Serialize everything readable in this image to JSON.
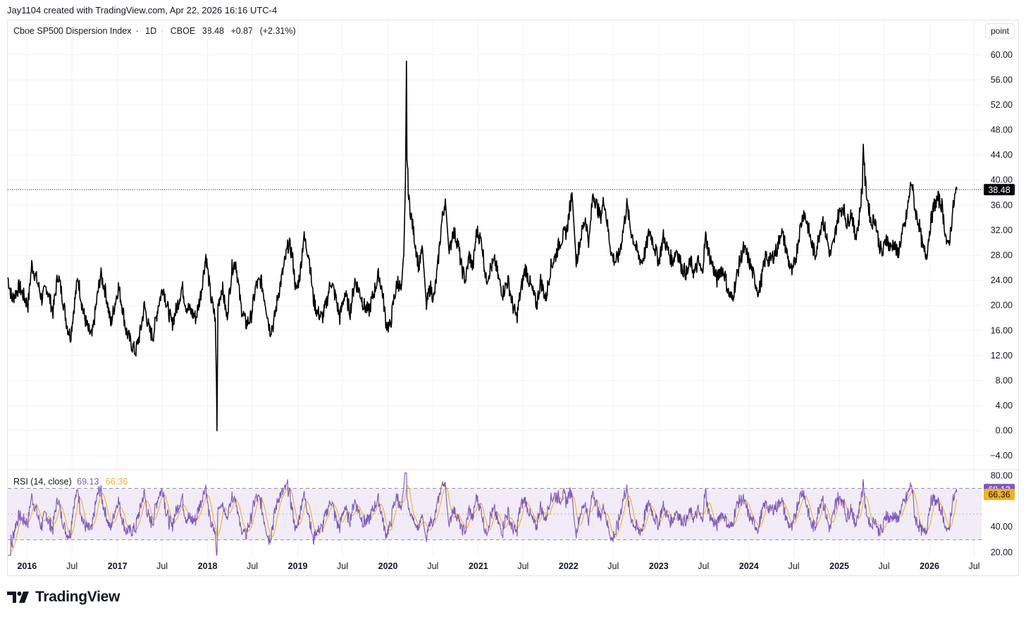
{
  "caption": "Jay1104 created with TradingView.com, Apr 22, 2026 16:16 UTC-4",
  "legend": {
    "symbol": "Cboe SP500 Dispersion Index",
    "interval": "1D",
    "exchange": "CBOE",
    "last": "38.48",
    "change": "+0.87",
    "change_pct": "(+2.31%)"
  },
  "unit_button": "point",
  "last_price_label": "38.48",
  "rsi": {
    "label": "RSI (14, close)",
    "value": "69.13",
    "ma_value": "66.36"
  },
  "brand": "TradingView",
  "colors": {
    "price_line": "#000000",
    "rsi_line": "#7e57c2",
    "rsi_ma": "#f2b21a",
    "rsi_band": "#ede7f6",
    "grid": "#f0f3fa",
    "last_label_bg": "#000000"
  },
  "chart_data": [
    {
      "type": "line",
      "title": "Cboe SP500 Dispersion Index · 1D · CBOE",
      "ylabel": "point",
      "ylim": [
        -6,
        62
      ],
      "y_ticks": [
        "60.00",
        "56.00",
        "52.00",
        "48.00",
        "44.00",
        "40.00",
        "36.00",
        "32.00",
        "28.00",
        "24.00",
        "20.00",
        "16.00",
        "12.00",
        "8.00",
        "4.00",
        "0.00",
        "−4.00"
      ],
      "x_ticks": [
        "2016",
        "Jul",
        "2017",
        "Jul",
        "2018",
        "Jul",
        "2019",
        "Jul",
        "2020",
        "Jul",
        "2021",
        "Jul",
        "2022",
        "Jul",
        "2023",
        "Jul",
        "2024",
        "Jul",
        "2025",
        "Jul",
        "2026",
        "Jul"
      ],
      "x_range": [
        "2015-10-15",
        "2026-07-31"
      ],
      "last_value": 38.48,
      "series": [
        {
          "values": [
            [
              "2015-10-15",
              24.5
            ],
            [
              "2015-11-01",
              21
            ],
            [
              "2015-12-01",
              23
            ],
            [
              "2016-01-05",
              20
            ],
            [
              "2016-01-20",
              26.5
            ],
            [
              "2016-02-10",
              24
            ],
            [
              "2016-03-01",
              21
            ],
            [
              "2016-03-20",
              23
            ],
            [
              "2016-04-15",
              19
            ],
            [
              "2016-05-05",
              25
            ],
            [
              "2016-05-25",
              21
            ],
            [
              "2016-06-10",
              17
            ],
            [
              "2016-06-25",
              15
            ],
            [
              "2016-07-10",
              20
            ],
            [
              "2016-07-25",
              24.5
            ],
            [
              "2016-08-15",
              19
            ],
            [
              "2016-09-05",
              16
            ],
            [
              "2016-09-20",
              15
            ],
            [
              "2016-10-10",
              21
            ],
            [
              "2016-10-25",
              25
            ],
            [
              "2016-11-15",
              22
            ],
            [
              "2016-12-05",
              17
            ],
            [
              "2016-12-20",
              20
            ],
            [
              "2017-01-05",
              23
            ],
            [
              "2017-01-20",
              20
            ],
            [
              "2017-02-05",
              16
            ],
            [
              "2017-02-25",
              14
            ],
            [
              "2017-03-15",
              12.5
            ],
            [
              "2017-04-05",
              16
            ],
            [
              "2017-04-20",
              20
            ],
            [
              "2017-05-10",
              16
            ],
            [
              "2017-05-25",
              15
            ],
            [
              "2017-06-15",
              20
            ],
            [
              "2017-07-05",
              23
            ],
            [
              "2017-07-20",
              20
            ],
            [
              "2017-08-10",
              17
            ],
            [
              "2017-09-01",
              20
            ],
            [
              "2017-09-20",
              23
            ],
            [
              "2017-10-05",
              20
            ],
            [
              "2017-10-25",
              19
            ],
            [
              "2017-11-15",
              18
            ],
            [
              "2017-12-05",
              22
            ],
            [
              "2017-12-25",
              28
            ],
            [
              "2018-01-15",
              21
            ],
            [
              "2018-02-01",
              18
            ],
            [
              "2018-02-06",
              7
            ],
            [
              "2018-02-08",
              0
            ],
            [
              "2018-02-12",
              20
            ],
            [
              "2018-03-01",
              23
            ],
            [
              "2018-03-20",
              18
            ],
            [
              "2018-04-10",
              26
            ],
            [
              "2018-04-25",
              27
            ],
            [
              "2018-05-15",
              20
            ],
            [
              "2018-06-05",
              17
            ],
            [
              "2018-06-25",
              18
            ],
            [
              "2018-07-15",
              23
            ],
            [
              "2018-08-05",
              24
            ],
            [
              "2018-08-25",
              20
            ],
            [
              "2018-09-10",
              16
            ],
            [
              "2018-09-25",
              17
            ],
            [
              "2018-10-15",
              22
            ],
            [
              "2018-11-05",
              26
            ],
            [
              "2018-11-25",
              30
            ],
            [
              "2018-12-10",
              28
            ],
            [
              "2018-12-25",
              22
            ],
            [
              "2019-01-10",
              25
            ],
            [
              "2019-01-25",
              31
            ],
            [
              "2019-02-15",
              28
            ],
            [
              "2019-03-05",
              21
            ],
            [
              "2019-03-20",
              19
            ],
            [
              "2019-04-10",
              18
            ],
            [
              "2019-04-25",
              20
            ],
            [
              "2019-05-15",
              24
            ],
            [
              "2019-06-05",
              21
            ],
            [
              "2019-06-20",
              18
            ],
            [
              "2019-07-10",
              22
            ],
            [
              "2019-08-01",
              19
            ],
            [
              "2019-08-20",
              24
            ],
            [
              "2019-09-10",
              22
            ],
            [
              "2019-09-25",
              20
            ],
            [
              "2019-10-15",
              19
            ],
            [
              "2019-11-05",
              22
            ],
            [
              "2019-11-25",
              25
            ],
            [
              "2019-12-10",
              22
            ],
            [
              "2019-12-25",
              17
            ],
            [
              "2020-01-10",
              16.5
            ],
            [
              "2020-01-25",
              21
            ],
            [
              "2020-02-10",
              24
            ],
            [
              "2020-02-25",
              22
            ],
            [
              "2020-03-05",
              28
            ],
            [
              "2020-03-12",
              40
            ],
            [
              "2020-03-16",
              59
            ],
            [
              "2020-03-18",
              44
            ],
            [
              "2020-03-25",
              37
            ],
            [
              "2020-04-05",
              34
            ],
            [
              "2020-04-20",
              30
            ],
            [
              "2020-05-05",
              26
            ],
            [
              "2020-05-20",
              29
            ],
            [
              "2020-06-05",
              20
            ],
            [
              "2020-06-20",
              23
            ],
            [
              "2020-07-05",
              21
            ],
            [
              "2020-07-20",
              26
            ],
            [
              "2020-08-05",
              33
            ],
            [
              "2020-08-20",
              37
            ],
            [
              "2020-09-05",
              28
            ],
            [
              "2020-09-20",
              32
            ],
            [
              "2020-10-10",
              30
            ],
            [
              "2020-10-25",
              26
            ],
            [
              "2020-11-10",
              24
            ],
            [
              "2020-11-25",
              28
            ],
            [
              "2020-12-10",
              26
            ],
            [
              "2020-12-25",
              32
            ],
            [
              "2021-01-15",
              30
            ],
            [
              "2021-02-01",
              24
            ],
            [
              "2021-02-20",
              26
            ],
            [
              "2021-03-10",
              27
            ],
            [
              "2021-03-25",
              24
            ],
            [
              "2021-04-10",
              22
            ],
            [
              "2021-05-01",
              24
            ],
            [
              "2021-05-20",
              20
            ],
            [
              "2021-06-05",
              18
            ],
            [
              "2021-06-20",
              22
            ],
            [
              "2021-07-10",
              26
            ],
            [
              "2021-07-25",
              24
            ],
            [
              "2021-08-10",
              22
            ],
            [
              "2021-08-25",
              20
            ],
            [
              "2021-09-10",
              24
            ],
            [
              "2021-10-01",
              21
            ],
            [
              "2021-10-20",
              26
            ],
            [
              "2021-11-10",
              28
            ],
            [
              "2021-11-25",
              30
            ],
            [
              "2021-12-10",
              31
            ],
            [
              "2021-12-25",
              32
            ],
            [
              "2022-01-15",
              38
            ],
            [
              "2022-02-01",
              27
            ],
            [
              "2022-02-20",
              31
            ],
            [
              "2022-03-10",
              34
            ],
            [
              "2022-03-25",
              30
            ],
            [
              "2022-04-10",
              38
            ],
            [
              "2022-04-25",
              36
            ],
            [
              "2022-05-10",
              34
            ],
            [
              "2022-05-25",
              37
            ],
            [
              "2022-06-10",
              32
            ],
            [
              "2022-06-25",
              28
            ],
            [
              "2022-07-10",
              27
            ],
            [
              "2022-07-25",
              28
            ],
            [
              "2022-08-10",
              32
            ],
            [
              "2022-08-25",
              36
            ],
            [
              "2022-09-10",
              32
            ],
            [
              "2022-09-25",
              30
            ],
            [
              "2022-10-10",
              28
            ],
            [
              "2022-10-25",
              27
            ],
            [
              "2022-11-10",
              29
            ],
            [
              "2022-11-25",
              32
            ],
            [
              "2022-12-10",
              30
            ],
            [
              "2023-01-01",
              27
            ],
            [
              "2023-01-20",
              31
            ],
            [
              "2023-02-05",
              29
            ],
            [
              "2023-02-25",
              27
            ],
            [
              "2023-03-15",
              29
            ],
            [
              "2023-04-05",
              26
            ],
            [
              "2023-04-25",
              25
            ],
            [
              "2023-05-10",
              27
            ],
            [
              "2023-05-25",
              25
            ],
            [
              "2023-06-10",
              27
            ],
            [
              "2023-06-25",
              25
            ],
            [
              "2023-07-10",
              31
            ],
            [
              "2023-07-25",
              28
            ],
            [
              "2023-08-10",
              26
            ],
            [
              "2023-08-25",
              24
            ],
            [
              "2023-09-10",
              26
            ],
            [
              "2023-09-25",
              25
            ],
            [
              "2023-10-10",
              22
            ],
            [
              "2023-10-25",
              21
            ],
            [
              "2023-11-10",
              24
            ],
            [
              "2023-11-25",
              27
            ],
            [
              "2023-12-10",
              29
            ],
            [
              "2023-12-25",
              28
            ],
            [
              "2024-01-10",
              26
            ],
            [
              "2024-01-25",
              24
            ],
            [
              "2024-02-10",
              22
            ],
            [
              "2024-02-25",
              25
            ],
            [
              "2024-03-10",
              28
            ],
            [
              "2024-03-25",
              27
            ],
            [
              "2024-04-10",
              28
            ],
            [
              "2024-04-25",
              29
            ],
            [
              "2024-05-10",
              32
            ],
            [
              "2024-05-25",
              30
            ],
            [
              "2024-06-10",
              27
            ],
            [
              "2024-06-25",
              25
            ],
            [
              "2024-07-10",
              28
            ],
            [
              "2024-07-25",
              32
            ],
            [
              "2024-08-10",
              35
            ],
            [
              "2024-08-25",
              33
            ],
            [
              "2024-09-10",
              30
            ],
            [
              "2024-09-25",
              28
            ],
            [
              "2024-10-10",
              31
            ],
            [
              "2024-10-25",
              34
            ],
            [
              "2024-11-10",
              31
            ],
            [
              "2024-11-25",
              28
            ],
            [
              "2024-12-10",
              30
            ],
            [
              "2024-12-25",
              34
            ],
            [
              "2025-01-15",
              36
            ],
            [
              "2025-02-01",
              33
            ],
            [
              "2025-02-20",
              35
            ],
            [
              "2025-03-05",
              31
            ],
            [
              "2025-03-20",
              33
            ],
            [
              "2025-04-04",
              39
            ],
            [
              "2025-04-08",
              46
            ],
            [
              "2025-04-15",
              40
            ],
            [
              "2025-04-25",
              37
            ],
            [
              "2025-05-10",
              33
            ],
            [
              "2025-05-25",
              34
            ],
            [
              "2025-06-10",
              30
            ],
            [
              "2025-06-25",
              28
            ],
            [
              "2025-07-10",
              31
            ],
            [
              "2025-07-25",
              29
            ],
            [
              "2025-08-10",
              30
            ],
            [
              "2025-08-25",
              28
            ],
            [
              "2025-09-10",
              31
            ],
            [
              "2025-09-25",
              33
            ],
            [
              "2025-10-10",
              37
            ],
            [
              "2025-10-20",
              40
            ],
            [
              "2025-11-05",
              35
            ],
            [
              "2025-11-20",
              33
            ],
            [
              "2025-12-05",
              29
            ],
            [
              "2025-12-20",
              28
            ],
            [
              "2026-01-05",
              33
            ],
            [
              "2026-01-20",
              36
            ],
            [
              "2026-02-05",
              37
            ],
            [
              "2026-02-20",
              36
            ],
            [
              "2026-03-05",
              32
            ],
            [
              "2026-03-15",
              29
            ],
            [
              "2026-03-25",
              31
            ],
            [
              "2026-04-05",
              35
            ],
            [
              "2026-04-15",
              37.6
            ],
            [
              "2026-04-22",
              38.48
            ]
          ]
        }
      ]
    },
    {
      "type": "line",
      "title": "RSI (14, close)",
      "ylim": [
        16,
        84
      ],
      "y_ticks": [
        "80.00",
        "40.00",
        "20.00"
      ],
      "bands": [
        30,
        50,
        70
      ],
      "series": [
        {
          "name": "RSI",
          "last": 69.13
        },
        {
          "name": "RSI-based MA",
          "last": 66.36
        }
      ]
    }
  ]
}
